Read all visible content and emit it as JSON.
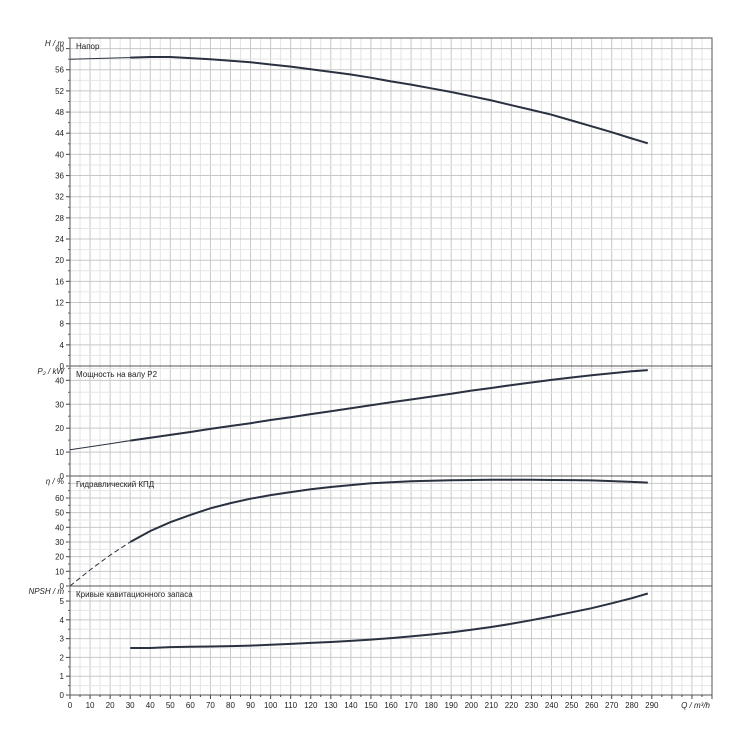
{
  "chart_data": [
    {
      "type": "line",
      "title": "Напор",
      "ylabel": "H / m",
      "xlim": [
        0,
        320
      ],
      "ylim": [
        0,
        62
      ],
      "y_ticks": [
        0,
        4,
        8,
        12,
        16,
        20,
        24,
        28,
        32,
        36,
        40,
        44,
        48,
        52,
        56,
        60
      ],
      "grid": true,
      "series": [
        {
          "x": [
            0,
            20,
            30,
            40,
            50,
            60,
            70,
            80,
            90,
            100,
            110,
            120,
            130,
            140,
            150,
            160,
            170,
            180,
            190,
            200,
            210,
            220,
            230,
            240,
            250,
            260,
            270,
            280,
            288
          ],
          "values": [
            58.0,
            58.2,
            58.3,
            58.4,
            58.4,
            58.2,
            58.0,
            57.7,
            57.4,
            57.0,
            56.6,
            56.1,
            55.6,
            55.1,
            54.5,
            53.8,
            53.2,
            52.5,
            51.8,
            51.0,
            50.2,
            49.3,
            48.4,
            47.5,
            46.4,
            45.3,
            44.2,
            43.0,
            42.1
          ]
        }
      ]
    },
    {
      "type": "line",
      "title": "Мощность на валу P2",
      "ylabel": "P₂ / kW",
      "xlim": [
        0,
        320
      ],
      "ylim": [
        0,
        46
      ],
      "y_ticks": [
        0,
        10,
        20,
        30,
        40
      ],
      "grid": true,
      "series": [
        {
          "x": [
            0,
            10,
            20,
            30,
            40,
            50,
            60,
            70,
            80,
            90,
            100,
            110,
            120,
            130,
            140,
            150,
            160,
            170,
            180,
            190,
            200,
            210,
            220,
            230,
            240,
            250,
            260,
            270,
            280,
            288
          ],
          "values": [
            11.0,
            12.2,
            13.5,
            14.8,
            16.0,
            17.2,
            18.4,
            19.7,
            20.9,
            22.1,
            23.4,
            24.6,
            25.9,
            27.1,
            28.3,
            29.6,
            30.8,
            32.0,
            33.2,
            34.4,
            35.7,
            36.8,
            38.0,
            39.1,
            40.2,
            41.2,
            42.1,
            43.0,
            43.8,
            44.3
          ]
        }
      ]
    },
    {
      "type": "line",
      "title": "Гидравлический КПД",
      "ylabel": "η / %",
      "xlim": [
        0,
        320
      ],
      "ylim": [
        0,
        75
      ],
      "y_ticks": [
        0,
        10,
        20,
        30,
        40,
        50,
        60
      ],
      "grid": true,
      "series": [
        {
          "x": [
            0,
            10,
            20,
            30,
            40,
            50,
            60,
            70,
            80,
            90,
            100,
            110,
            120,
            130,
            140,
            150,
            160,
            170,
            180,
            190,
            200,
            210,
            220,
            230,
            240,
            250,
            260,
            270,
            280,
            288
          ],
          "values": [
            0,
            11,
            21,
            30,
            37.5,
            43.5,
            48.5,
            53,
            56.5,
            59.5,
            62,
            64,
            66,
            67.5,
            68.8,
            70,
            70.8,
            71.4,
            71.8,
            72.1,
            72.3,
            72.4,
            72.4,
            72.4,
            72.3,
            72.2,
            72.0,
            71.5,
            71.0,
            70.5
          ]
        }
      ]
    },
    {
      "type": "line",
      "title": "Кривые кавитационного запаса",
      "ylabel": "NPSH / m",
      "xlabel": "Q / m³/h",
      "xlim": [
        0,
        320
      ],
      "ylim": [
        0,
        5.8
      ],
      "y_ticks": [
        0,
        1,
        2,
        3,
        4,
        5
      ],
      "x_ticks": [
        0,
        10,
        20,
        30,
        40,
        50,
        60,
        70,
        80,
        90,
        100,
        110,
        120,
        130,
        140,
        150,
        160,
        170,
        180,
        190,
        200,
        210,
        220,
        230,
        240,
        250,
        260,
        270,
        280,
        290
      ],
      "grid": true,
      "series": [
        {
          "x": [
            30,
            40,
            50,
            60,
            70,
            80,
            90,
            100,
            110,
            120,
            130,
            140,
            150,
            160,
            170,
            180,
            190,
            200,
            210,
            220,
            230,
            240,
            250,
            260,
            270,
            280,
            288
          ],
          "values": [
            2.5,
            2.5,
            2.55,
            2.57,
            2.58,
            2.6,
            2.63,
            2.67,
            2.72,
            2.77,
            2.82,
            2.88,
            2.95,
            3.03,
            3.12,
            3.22,
            3.33,
            3.47,
            3.62,
            3.79,
            3.98,
            4.18,
            4.4,
            4.62,
            4.88,
            5.15,
            5.4
          ]
        }
      ]
    }
  ]
}
